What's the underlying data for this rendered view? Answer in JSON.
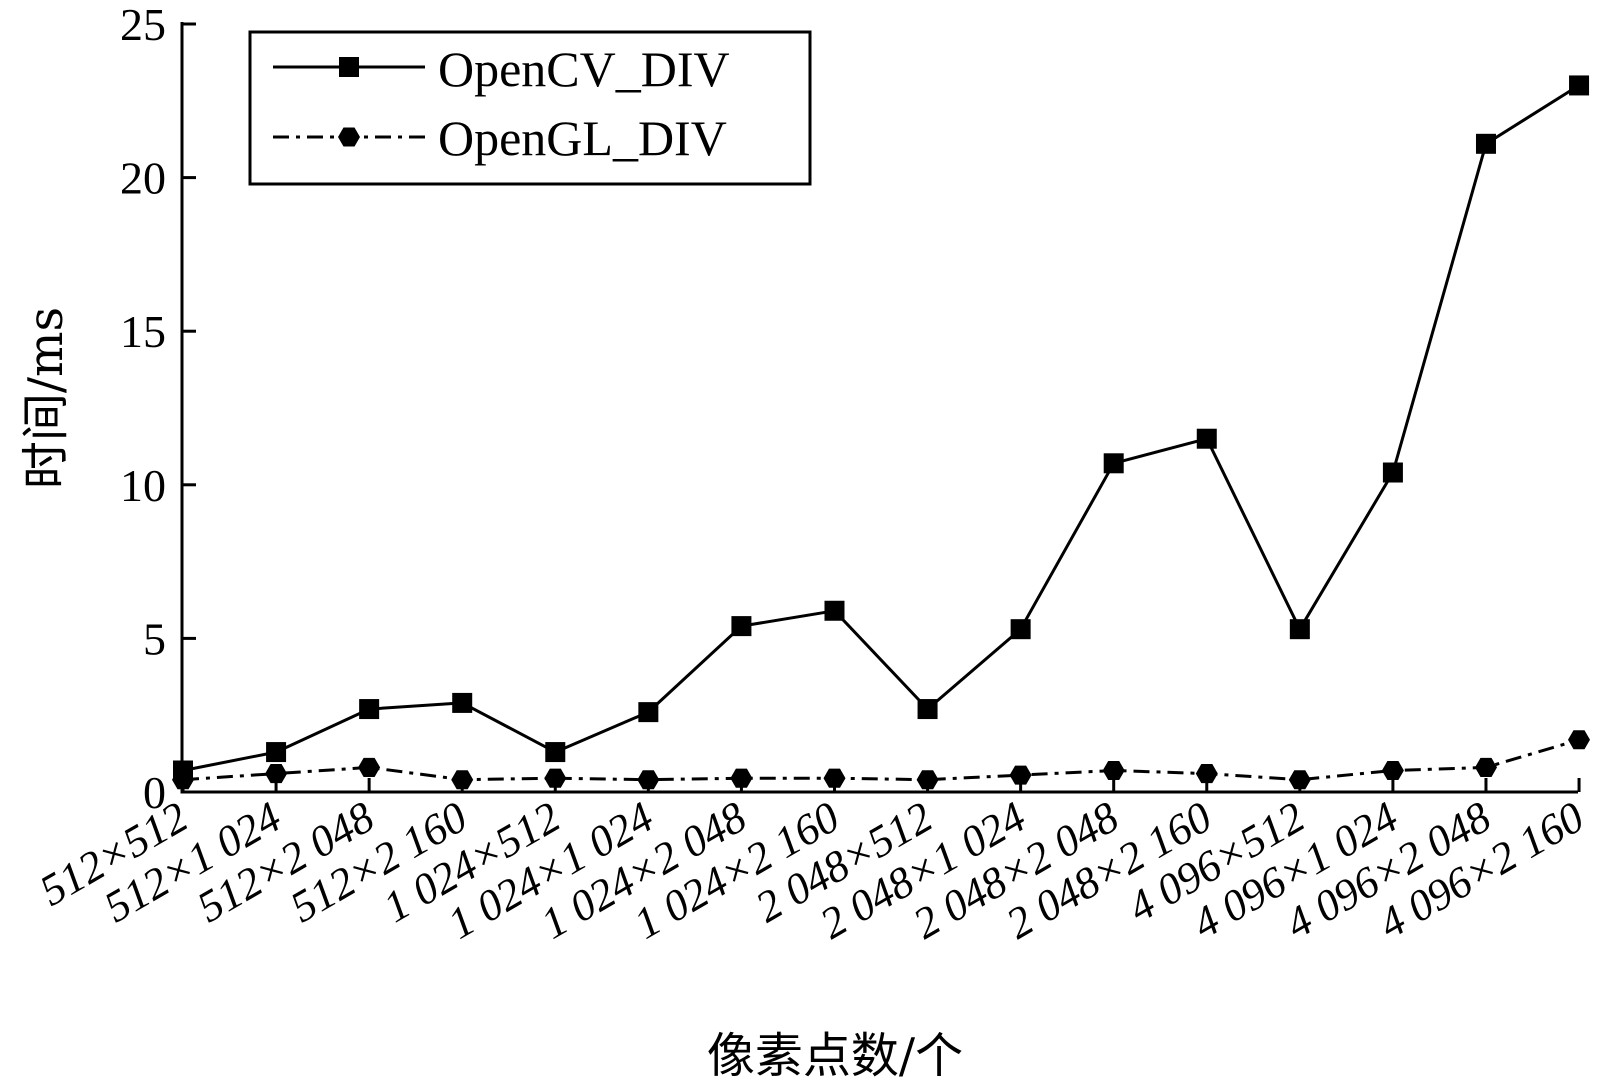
{
  "chart_data": {
    "type": "line",
    "xlabel": "像素点数/个",
    "ylabel": "时间/ms",
    "ylim": [
      0,
      25
    ],
    "yticks": [
      0,
      5,
      10,
      15,
      20,
      25
    ],
    "grid": false,
    "legend_position": "top-left",
    "categories": [
      "512×512",
      "512×1 024",
      "512×2 048",
      "512×2 160",
      "1 024×512",
      "1 024×1 024",
      "1 024×2 048",
      "1 024×2 160",
      "2 048×512",
      "2 048×1 024",
      "2 048×2 048",
      "2 048×2 160",
      "4 096×512",
      "4 096×1 024",
      "4 096×2 048",
      "4 096×2 160"
    ],
    "series": [
      {
        "name": "OpenCV_DIV",
        "marker": "square",
        "line_style": "solid",
        "color": "#000000",
        "values": [
          0.7,
          1.3,
          2.7,
          2.9,
          1.3,
          2.6,
          5.4,
          5.9,
          2.7,
          5.3,
          10.7,
          11.5,
          5.3,
          10.4,
          21.1,
          23.0
        ]
      },
      {
        "name": "OpenGL_DIV",
        "marker": "hexagon",
        "line_style": "dashdot",
        "color": "#000000",
        "values": [
          0.4,
          0.6,
          0.8,
          0.4,
          0.45,
          0.4,
          0.45,
          0.45,
          0.4,
          0.55,
          0.7,
          0.6,
          0.4,
          0.7,
          0.8,
          1.7
        ]
      }
    ]
  }
}
